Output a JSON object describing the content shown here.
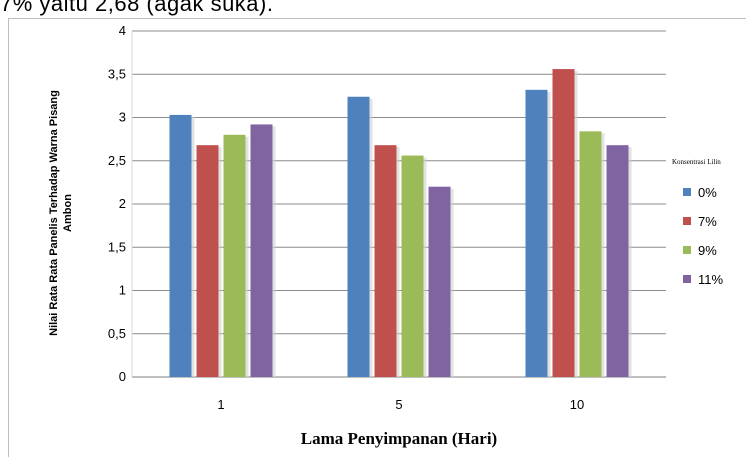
{
  "header_text": "7%   yaitu   2,68   (agak   suka).",
  "chart_data": {
    "type": "bar",
    "categories": [
      "1",
      "5",
      "10"
    ],
    "series": [
      {
        "name": "0%",
        "color": "#4f81bd",
        "values": [
          3.03,
          3.24,
          3.32
        ]
      },
      {
        "name": "7%",
        "color": "#c0504d",
        "values": [
          2.68,
          2.68,
          3.56
        ]
      },
      {
        "name": "9%",
        "color": "#9bbb59",
        "values": [
          2.8,
          2.56,
          2.84
        ]
      },
      {
        "name": "11%",
        "color": "#8064a2",
        "values": [
          2.92,
          2.2,
          2.68
        ]
      }
    ],
    "yticks": [
      "0",
      "0,5",
      "1",
      "1,5",
      "2",
      "2,5",
      "3",
      "3,5",
      "4"
    ],
    "ylim": [
      0,
      4
    ],
    "xlabel": "Lama Penyimpanan (Hari)",
    "ylabel_lines": [
      "Nilai Rata Rata Panelis Terhadap Warna Pisang",
      "Ambon"
    ],
    "legend_title": "Konsentrasi Lilin",
    "legend_position": "right",
    "grid": "horizontal"
  }
}
